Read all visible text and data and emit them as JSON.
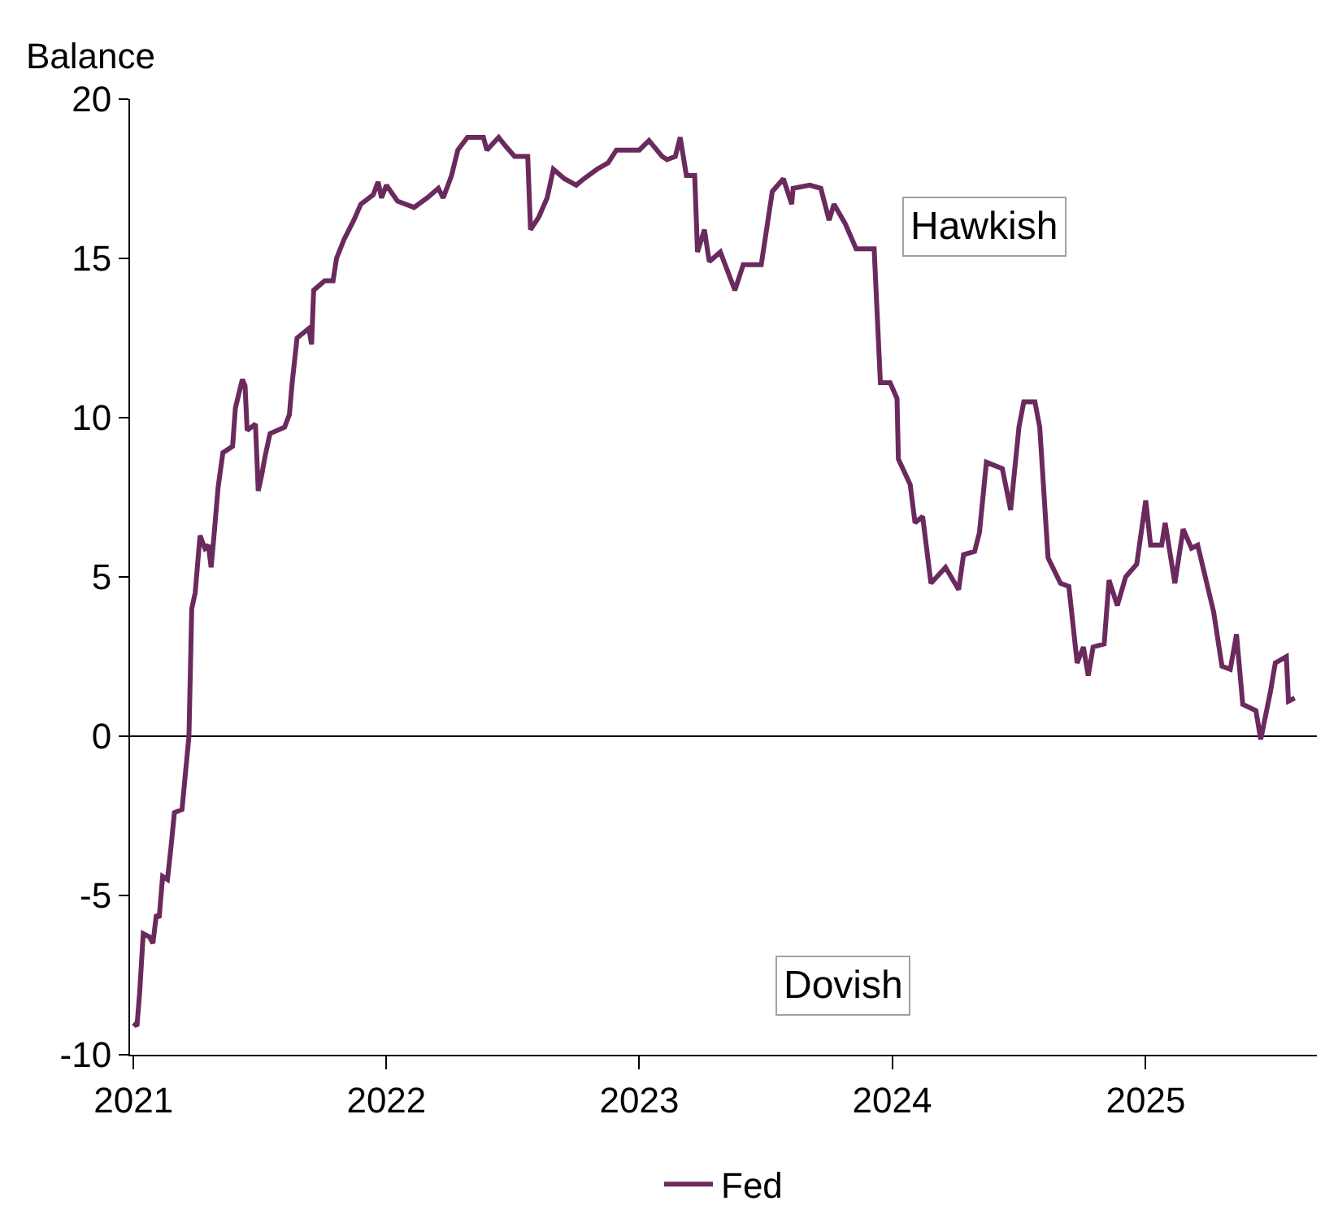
{
  "chart_data": {
    "type": "line",
    "ylabel": "Balance",
    "x": [
      "2021-01-01",
      "2021-01-06",
      "2021-01-10",
      "2021-01-15",
      "2021-01-24",
      "2021-01-29",
      "2021-02-03",
      "2021-02-07",
      "2021-02-12",
      "2021-02-19",
      "2021-02-24",
      "2021-03-01",
      "2021-03-12",
      "2021-03-22",
      "2021-03-26",
      "2021-03-31",
      "2021-04-07",
      "2021-04-14",
      "2021-04-19",
      "2021-04-23",
      "2021-04-28",
      "2021-05-03",
      "2021-05-10",
      "2021-05-24",
      "2021-05-28",
      "2021-06-07",
      "2021-06-11",
      "2021-06-14",
      "2021-06-26",
      "2021-06-30",
      "2021-07-05",
      "2021-07-10",
      "2021-07-17",
      "2021-08-07",
      "2021-08-14",
      "2021-08-18",
      "2021-08-25",
      "2021-09-11",
      "2021-09-15",
      "2021-09-18",
      "2021-10-04",
      "2021-10-16",
      "2021-10-21",
      "2021-11-01",
      "2021-11-15",
      "2021-11-25",
      "2021-12-13",
      "2021-12-20",
      "2021-12-25",
      "2022-01-01",
      "2022-01-17",
      "2022-02-10",
      "2022-03-01",
      "2022-03-17",
      "2022-03-24",
      "2022-04-05",
      "2022-04-14",
      "2022-04-28",
      "2022-05-21",
      "2022-05-26",
      "2022-06-12",
      "2022-06-23",
      "2022-07-05",
      "2022-07-24",
      "2022-07-28",
      "2022-08-09",
      "2022-08-21",
      "2022-08-30",
      "2022-09-15",
      "2022-10-02",
      "2022-10-13",
      "2022-11-01",
      "2022-11-17",
      "2022-11-29",
      "2023-01-01",
      "2023-01-15",
      "2023-02-03",
      "2023-02-10",
      "2023-02-22",
      "2023-03-01",
      "2023-03-10",
      "2023-03-22",
      "2023-03-26",
      "2023-04-05",
      "2023-04-12",
      "2023-04-28",
      "2023-05-19",
      "2023-05-31",
      "2023-06-26",
      "2023-07-12",
      "2023-07-28",
      "2023-08-09",
      "2023-08-11",
      "2023-09-04",
      "2023-09-20",
      "2023-10-02",
      "2023-10-09",
      "2023-10-25",
      "2023-11-10",
      "2023-12-06",
      "2023-12-15",
      "2023-12-29",
      "2024-01-08",
      "2024-01-10",
      "2024-01-27",
      "2024-02-03",
      "2024-02-14",
      "2024-02-26",
      "2024-03-18",
      "2024-04-06",
      "2024-04-13",
      "2024-04-29",
      "2024-05-06",
      "2024-05-16",
      "2024-06-08",
      "2024-06-20",
      "2024-07-02",
      "2024-07-09",
      "2024-07-25",
      "2024-08-01",
      "2024-08-13",
      "2024-08-31",
      "2024-09-12",
      "2024-09-24",
      "2024-10-03",
      "2024-10-10",
      "2024-10-17",
      "2024-11-02",
      "2024-11-09",
      "2024-11-21",
      "2024-12-03",
      "2024-12-19",
      "2025-01-01",
      "2025-01-08",
      "2025-01-24",
      "2025-01-29",
      "2025-02-12",
      "2025-02-24",
      "2025-03-08",
      "2025-03-17",
      "2025-03-29",
      "2025-04-09",
      "2025-04-21",
      "2025-05-03",
      "2025-05-12",
      "2025-05-21",
      "2025-06-09",
      "2025-06-16",
      "2025-06-30",
      "2025-07-07",
      "2025-07-23",
      "2025-07-26",
      "2025-08-04"
    ],
    "series": [
      {
        "name": "Fed",
        "color": "#6b2a5e",
        "values": [
          -9.0,
          -9.1,
          -8.0,
          -6.2,
          -6.3,
          -6.5,
          -5.6,
          -5.7,
          -4.4,
          -4.5,
          -3.5,
          -2.4,
          -2.3,
          0.0,
          4.0,
          4.5,
          6.3,
          5.9,
          6.0,
          5.3,
          6.5,
          7.8,
          8.9,
          9.1,
          10.3,
          11.2,
          11.0,
          9.6,
          9.8,
          7.7,
          8.2,
          8.8,
          9.5,
          9.7,
          10.1,
          11.1,
          12.5,
          12.8,
          12.3,
          14.0,
          14.3,
          14.3,
          15.0,
          15.6,
          16.2,
          16.7,
          17.0,
          17.4,
          16.9,
          17.3,
          16.8,
          16.6,
          16.9,
          17.2,
          16.9,
          17.6,
          18.4,
          18.8,
          18.8,
          18.4,
          18.8,
          18.5,
          18.2,
          18.2,
          15.9,
          16.3,
          16.9,
          17.8,
          17.5,
          17.3,
          17.5,
          17.8,
          18.0,
          18.4,
          18.4,
          18.7,
          18.2,
          18.1,
          18.2,
          18.8,
          17.6,
          17.6,
          15.2,
          15.9,
          14.9,
          15.2,
          14.0,
          14.8,
          14.8,
          17.1,
          17.5,
          16.7,
          17.2,
          17.3,
          17.2,
          16.2,
          16.7,
          16.1,
          15.3,
          15.3,
          11.1,
          11.1,
          10.6,
          8.7,
          7.9,
          6.7,
          6.9,
          4.8,
          5.3,
          4.6,
          5.7,
          5.8,
          6.4,
          8.6,
          8.4,
          7.1,
          9.7,
          10.5,
          10.5,
          9.7,
          5.6,
          4.8,
          4.7,
          2.3,
          2.8,
          1.9,
          2.8,
          2.9,
          4.9,
          4.1,
          5.0,
          5.4,
          7.4,
          6.0,
          6.0,
          6.7,
          4.8,
          6.5,
          5.9,
          6.0,
          4.9,
          3.9,
          2.2,
          2.1,
          3.2,
          1.0,
          0.8,
          -0.1,
          1.4,
          2.3,
          2.5,
          1.1,
          1.2
        ]
      }
    ],
    "xlim": [
      "2020-12-27",
      "2025-09-05"
    ],
    "xticks": [
      {
        "value": "2021-01-01",
        "label": "2021"
      },
      {
        "value": "2022-01-01",
        "label": "2022"
      },
      {
        "value": "2023-01-01",
        "label": "2023"
      },
      {
        "value": "2024-01-01",
        "label": "2024"
      },
      {
        "value": "2025-01-01",
        "label": "2025"
      }
    ],
    "ylim": [
      -10,
      20
    ],
    "yticks": [
      -10,
      -5,
      0,
      5,
      10,
      15,
      20
    ],
    "ref_lines": [
      {
        "axis": "y",
        "value": 0,
        "color": "#000000"
      }
    ],
    "annotations": [
      "Hawkish",
      "Dovish"
    ],
    "grid": false,
    "legend": "bottom",
    "marker": "none",
    "line_style": "solid"
  }
}
